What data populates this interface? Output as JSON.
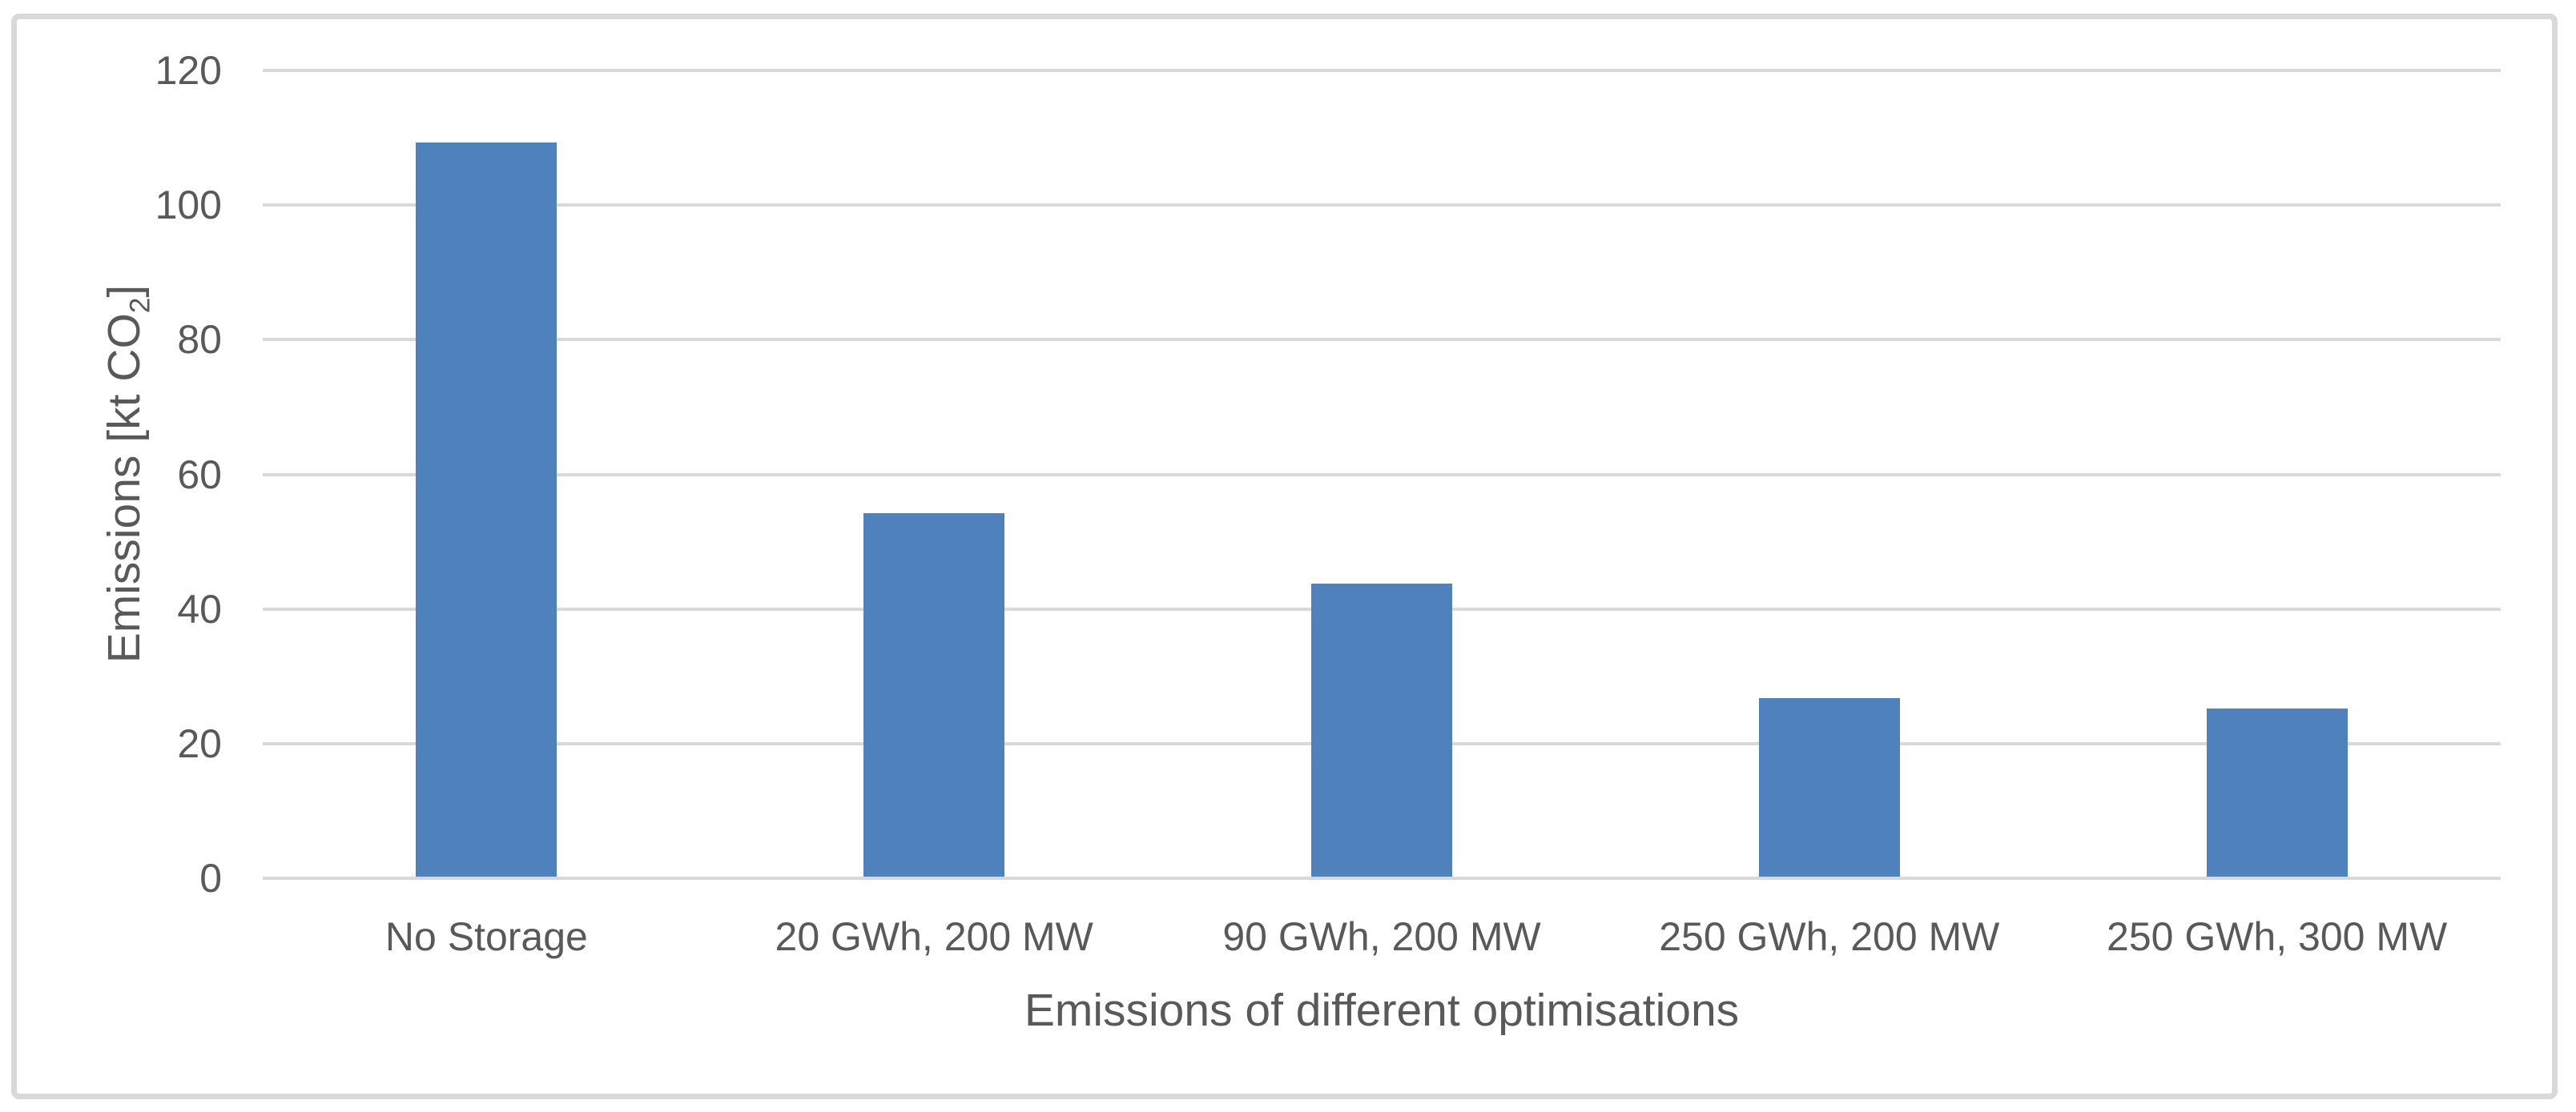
{
  "chart_data": {
    "type": "bar",
    "title": "",
    "xlabel": "Emissions of different optimisations",
    "ylabel": "Emissions [kt CO₂]",
    "ylabel_parts": {
      "prefix": "Emissions [kt CO",
      "sub": "2",
      "suffix": "]"
    },
    "categories": [
      "No Storage",
      "20 GWh, 200 MW",
      "90 GWh, 200 MW",
      "250 GWh, 200 MW",
      "250 GWh, 300 MW"
    ],
    "values": [
      109,
      54,
      43.5,
      26.5,
      25
    ],
    "yticks": [
      0,
      20,
      40,
      60,
      80,
      100,
      120
    ],
    "ylim": [
      0,
      120
    ],
    "grid": "horizontal-only",
    "legend": "none",
    "colors": {
      "bar": "#4F81BD",
      "gridline": "#D9D9D9",
      "text": "#595959",
      "chart_border": "#D9D9D9",
      "background": "#FFFFFF"
    }
  }
}
